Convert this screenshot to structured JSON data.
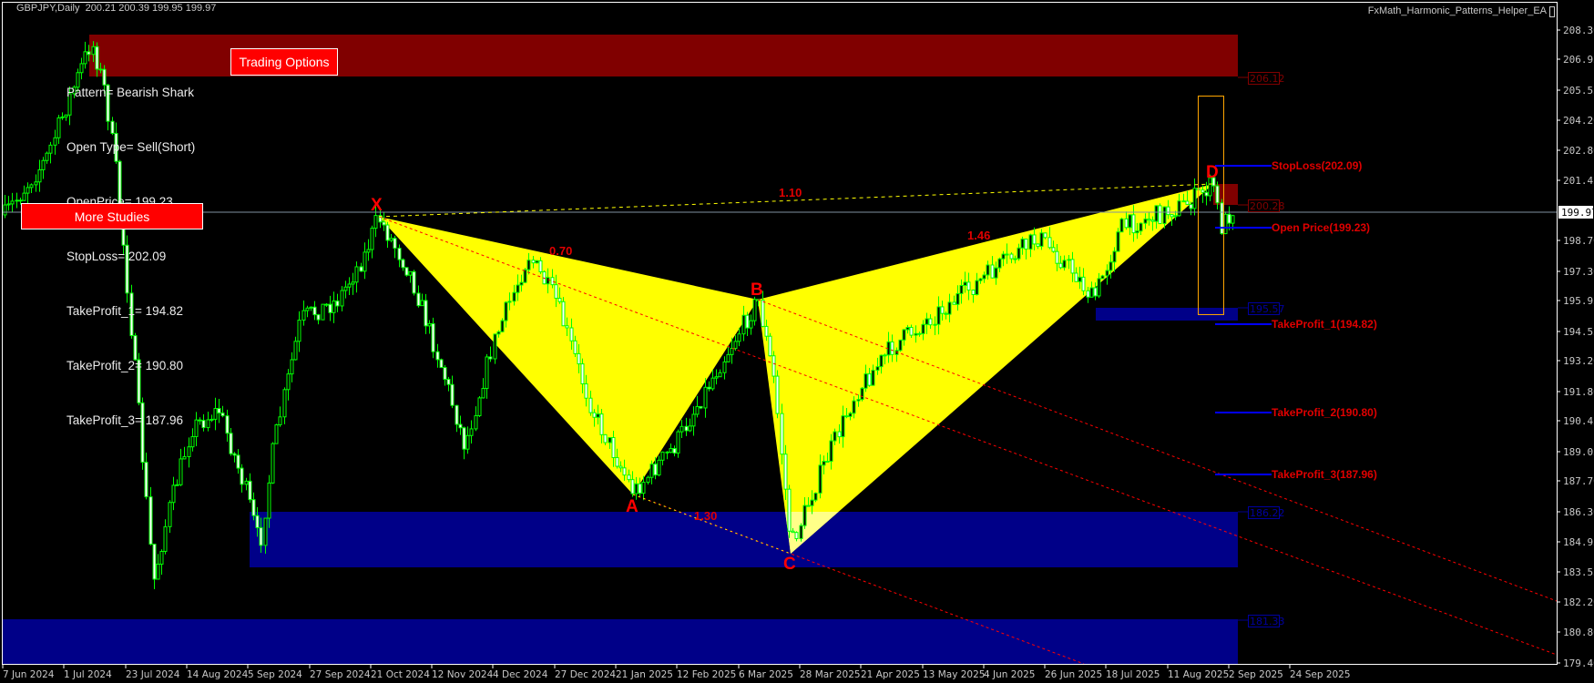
{
  "header": {
    "symbol_info": "GBPJPY,Daily  200.21 200.39 199.95 199.97",
    "ea_name": "FxMath_Harmonic_Patterns_Helper_EA"
  },
  "info_panel": {
    "lines": [
      "Pattern= Bearish Shark",
      "Open Type= Sell(Short)",
      "OpenPrice= 199.23",
      "StopLoss= 202.09",
      "TakeProfit_1= 194.82",
      "TakeProfit_2= 190.80",
      "TakeProfit_3= 187.96"
    ]
  },
  "buttons": {
    "trading_options": "Trading Options",
    "more_studies": "More Studies"
  },
  "pattern": {
    "points": {
      "X": "X",
      "A": "A",
      "B": "B",
      "C": "C",
      "D": "D"
    },
    "ratios": {
      "xb": "0.70",
      "xd": "1.10",
      "bd": "1.46",
      "ac": "1.30"
    }
  },
  "levels": {
    "stop_loss": "StopLoss(202.09)",
    "open_price": "Open Price(199.23)",
    "take_profit_1": "TakeProfit_1(194.82)",
    "take_profit_2": "TakeProfit_2(190.80)",
    "take_profit_3": "TakeProfit_3(187.96)"
  },
  "zones": {
    "resistance_top": "206.12",
    "resistance_d": "200.28",
    "support_1": "195.57",
    "support_2": "186.22",
    "support_3": "181.33"
  },
  "price_axis": {
    "ticks": [
      "208.30",
      "206.95",
      "205.55",
      "204.20",
      "202.80",
      "201.45",
      "198.70",
      "197.30",
      "195.95",
      "194.55",
      "193.20",
      "191.80",
      "190.45",
      "189.05",
      "187.70",
      "186.30",
      "184.95",
      "183.55",
      "182.20",
      "180.80",
      "179.40"
    ],
    "current_price": "199.97"
  },
  "time_axis": {
    "labels": [
      "7 Jun 2024",
      "1 Jul 2024",
      "23 Jul 2024",
      "14 Aug 2024",
      "5 Sep 2024",
      "27 Sep 2024",
      "21 Oct 2024",
      "12 Nov 2024",
      "4 Dec 2024",
      "27 Dec 2024",
      "21 Jan 2025",
      "12 Feb 2025",
      "6 Mar 2025",
      "28 Mar 2025",
      "21 Apr 2025",
      "13 May 2025",
      "4 Jun 2025",
      "26 Jun 2025",
      "18 Jul 2025",
      "11 Aug 2025",
      "2 Sep 2025",
      "24 Sep 2025"
    ]
  },
  "colors": {
    "background": "#000000",
    "bull_candle": "#00ff00",
    "pattern_fill": "#ffff00",
    "resistance_zone": "#800000",
    "support_zone": "#000088",
    "level_line": "#0000ff",
    "level_text": "#e00000",
    "button": "#ff0000",
    "trend_line": "#ff0000",
    "box": "#ffa500"
  }
}
